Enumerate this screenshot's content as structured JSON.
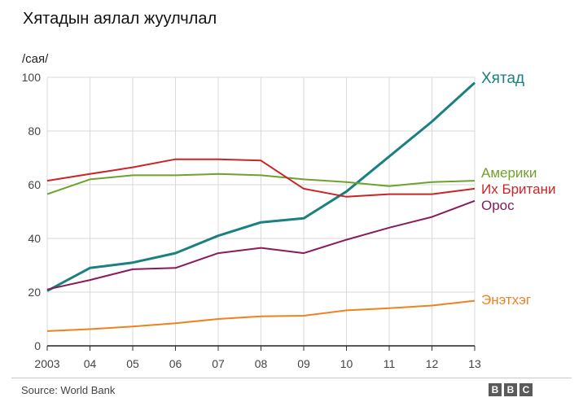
{
  "title": "Хятадын аялал жуулчлал",
  "unit_label": "/сая/",
  "source": "Source: World Bank",
  "logo": {
    "letters": [
      "B",
      "B",
      "C"
    ]
  },
  "chart_data": {
    "type": "line",
    "x": [
      "2003",
      "04",
      "05",
      "06",
      "07",
      "08",
      "09",
      "10",
      "11",
      "12",
      "13"
    ],
    "ylim": [
      0,
      100
    ],
    "yticks": [
      0,
      20,
      40,
      60,
      80,
      100
    ],
    "grid": true,
    "legend": "right-end labels",
    "series": [
      {
        "name": "Хятад",
        "color": "#1a8080",
        "values": [
          20.5,
          29,
          31,
          34.5,
          41,
          46,
          47.5,
          57.5,
          70.5,
          83.5,
          98
        ]
      },
      {
        "name": "Америки",
        "color": "#6ea22c",
        "values": [
          56.5,
          62,
          63.5,
          63.5,
          64,
          63.5,
          62,
          61,
          59.5,
          61,
          61.5
        ]
      },
      {
        "name": "Их Британи",
        "color": "#cc2424",
        "values": [
          61.5,
          64,
          66.5,
          69.5,
          69.5,
          69,
          58.5,
          55.5,
          56.5,
          56.5,
          58.5
        ]
      },
      {
        "name": "Орос",
        "color": "#8a1a5a",
        "values": [
          21,
          24.5,
          28.5,
          29,
          34.5,
          36.5,
          34.5,
          39.5,
          44,
          48,
          54
        ]
      },
      {
        "name": "Энэтхэг",
        "color": "#f08020",
        "values": [
          5.5,
          6.2,
          7.2,
          8.4,
          10,
          11,
          11.2,
          13.2,
          14,
          15,
          16.8
        ]
      }
    ]
  }
}
